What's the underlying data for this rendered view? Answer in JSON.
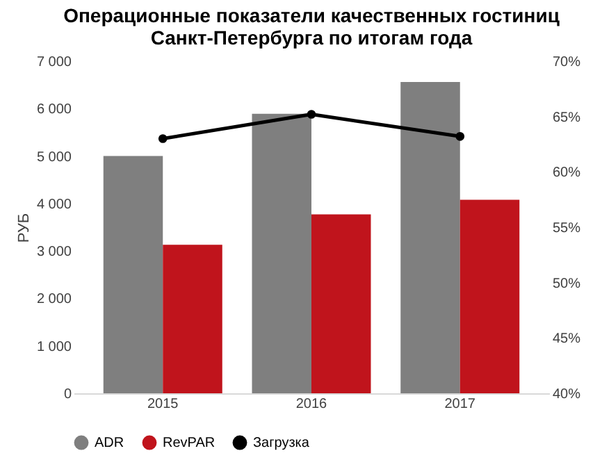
{
  "chart_data": {
    "type": "bar",
    "title": [
      "Операционные показатели качественных гостиниц",
      "Санкт-Петербурга по итогам года"
    ],
    "ylabel": "РУБ",
    "categories": [
      "2015",
      "2016",
      "2017"
    ],
    "series": [
      {
        "name": "ADR",
        "color": "#7f7f7f",
        "values": [
          5000,
          5890,
          6560
        ]
      },
      {
        "name": "RevPAR",
        "color": "#c0141c",
        "values": [
          3130,
          3770,
          4080
        ]
      },
      {
        "name": "Загрузка",
        "type": "line",
        "axis": "y2",
        "color": "#000000",
        "values": [
          63.0,
          65.2,
          63.2
        ]
      }
    ],
    "ylim": [
      0,
      7000
    ],
    "yticks": [
      0,
      {
        "value": 1000,
        "label": "1 000"
      },
      {
        "value": 2000,
        "label": "2 000"
      },
      {
        "value": 3000,
        "label": "3 000"
      },
      {
        "value": 4000,
        "label": "4 000"
      },
      {
        "value": 5000,
        "label": "5 000"
      },
      {
        "value": 6000,
        "label": "6 000"
      },
      {
        "value": 7000,
        "label": "7 000"
      }
    ],
    "y2lim": [
      40,
      70
    ],
    "y2ticks": [
      {
        "value": 40,
        "label": "40%"
      },
      {
        "value": 45,
        "label": "45%"
      },
      {
        "value": 50,
        "label": "50%"
      },
      {
        "value": 55,
        "label": "55%"
      },
      {
        "value": 60,
        "label": "60%"
      },
      {
        "value": 65,
        "label": "65%"
      },
      {
        "value": 70,
        "label": "70%"
      }
    ],
    "legend": "bottom",
    "grid": false,
    "marker": "circle",
    "line_style": "solid"
  }
}
